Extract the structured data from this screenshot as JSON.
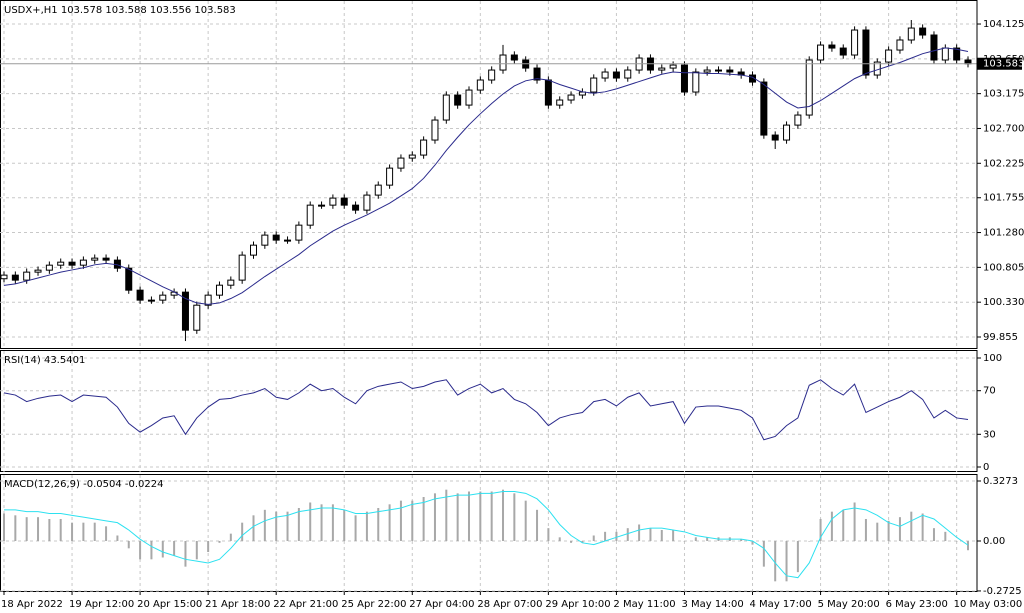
{
  "chart_data": [
    {
      "type": "candlestick",
      "title": "USDX+,H1  103.578 103.588 103.556 103.583",
      "categories": [
        "18 Apr 2022",
        null,
        null,
        null,
        null,
        null,
        "19 Apr 12:00",
        null,
        null,
        null,
        null,
        null,
        "20 Apr 15:00",
        null,
        null,
        null,
        null,
        null,
        "21 Apr 18:00",
        null,
        null,
        null,
        null,
        null,
        "22 Apr 21:00",
        null,
        null,
        null,
        null,
        null,
        "25 Apr 22:00",
        null,
        null,
        null,
        null,
        null,
        "27 Apr 04:00",
        null,
        null,
        null,
        null,
        null,
        "28 Apr 07:00",
        null,
        null,
        null,
        null,
        null,
        "29 Apr 10:00",
        null,
        null,
        null,
        null,
        null,
        "2 May 11:00",
        null,
        null,
        null,
        null,
        null,
        "3 May 14:00",
        null,
        null,
        null,
        null,
        null,
        "4 May 17:00",
        null,
        null,
        null,
        null,
        null,
        "5 May 20:00",
        null,
        null,
        null,
        null,
        null,
        "6 May 23:00",
        null,
        null,
        null,
        null,
        null,
        "10 May 03:00",
        null
      ],
      "open": [
        100.65,
        100.699,
        100.631,
        100.74,
        100.767,
        100.835,
        100.876,
        100.835,
        100.904,
        100.931,
        100.904,
        100.794,
        100.494,
        100.358,
        100.358,
        100.426,
        100.467,
        99.948,
        100.289,
        100.426,
        100.562,
        100.631,
        100.972,
        101.108,
        101.245,
        101.177,
        101.177,
        101.381,
        101.654,
        101.654,
        101.75,
        101.654,
        101.586,
        101.791,
        101.927,
        102.159,
        102.296,
        102.337,
        102.542,
        102.815,
        103.156,
        103.019,
        103.224,
        103.361,
        103.497,
        103.702,
        103.634,
        103.524,
        103.361,
        103.019,
        103.088,
        103.156,
        103.197,
        103.388,
        103.47,
        103.388,
        103.497,
        103.661,
        103.497,
        103.524,
        103.565,
        103.197,
        103.47,
        103.497,
        103.497,
        103.47,
        103.429,
        103.333,
        102.61,
        102.542,
        102.746,
        102.883,
        103.634,
        103.838,
        103.797,
        103.702,
        104.043,
        103.429,
        103.606,
        103.77,
        103.907,
        104.07,
        103.975,
        103.634,
        103.797,
        103.634
      ],
      "high": [
        100.749,
        100.749,
        100.79,
        100.817,
        100.885,
        100.926,
        100.926,
        100.954,
        100.981,
        100.981,
        100.954,
        100.844,
        100.544,
        100.408,
        100.476,
        100.517,
        100.517,
        100.339,
        100.476,
        100.612,
        100.681,
        101.022,
        101.158,
        101.295,
        101.295,
        101.227,
        101.431,
        101.704,
        101.704,
        101.8,
        101.8,
        101.704,
        101.841,
        101.977,
        102.209,
        102.346,
        102.387,
        102.592,
        102.865,
        103.206,
        103.206,
        103.274,
        103.411,
        103.547,
        103.84,
        103.752,
        103.684,
        103.574,
        103.411,
        103.138,
        103.206,
        103.247,
        103.438,
        103.52,
        103.52,
        103.547,
        103.711,
        103.711,
        103.574,
        103.615,
        103.615,
        103.52,
        103.547,
        103.547,
        103.547,
        103.52,
        103.479,
        103.383,
        102.66,
        102.796,
        102.933,
        103.684,
        103.888,
        103.888,
        103.847,
        104.093,
        104.093,
        103.656,
        103.82,
        103.957,
        104.18,
        104.12,
        104.025,
        103.847,
        103.847,
        103.684
      ],
      "low": [
        100.6,
        100.581,
        100.581,
        100.69,
        100.717,
        100.785,
        100.785,
        100.785,
        100.854,
        100.854,
        100.744,
        100.444,
        100.308,
        100.308,
        100.308,
        100.376,
        99.8,
        99.898,
        100.239,
        100.376,
        100.512,
        100.581,
        100.922,
        101.058,
        101.127,
        101.127,
        101.127,
        101.331,
        101.604,
        101.604,
        101.604,
        101.536,
        101.536,
        101.741,
        101.877,
        102.109,
        102.246,
        102.287,
        102.492,
        102.765,
        102.969,
        102.969,
        103.174,
        103.311,
        103.447,
        103.584,
        103.474,
        103.311,
        102.969,
        102.969,
        103.038,
        103.106,
        103.147,
        103.338,
        103.338,
        103.338,
        103.447,
        103.447,
        103.447,
        103.474,
        103.147,
        103.147,
        103.42,
        103.447,
        103.42,
        103.379,
        103.283,
        102.56,
        102.42,
        102.492,
        102.696,
        102.833,
        103.584,
        103.747,
        103.652,
        103.652,
        103.379,
        103.379,
        103.556,
        103.72,
        103.857,
        103.925,
        103.584,
        103.584,
        103.584,
        103.533
      ],
      "close": [
        100.699,
        100.631,
        100.74,
        100.767,
        100.835,
        100.876,
        100.835,
        100.904,
        100.931,
        100.904,
        100.794,
        100.494,
        100.358,
        100.358,
        100.426,
        100.467,
        99.948,
        100.289,
        100.426,
        100.562,
        100.631,
        100.972,
        101.108,
        101.245,
        101.177,
        101.177,
        101.381,
        101.654,
        101.654,
        101.75,
        101.654,
        101.586,
        101.791,
        101.927,
        102.159,
        102.296,
        102.337,
        102.542,
        102.815,
        103.156,
        103.019,
        103.224,
        103.361,
        103.497,
        103.702,
        103.634,
        103.524,
        103.361,
        103.019,
        103.088,
        103.156,
        103.197,
        103.388,
        103.47,
        103.388,
        103.497,
        103.661,
        103.497,
        103.524,
        103.565,
        103.197,
        103.47,
        103.497,
        103.497,
        103.47,
        103.429,
        103.333,
        102.61,
        102.542,
        102.746,
        102.883,
        103.634,
        103.838,
        103.797,
        103.702,
        104.043,
        103.429,
        103.606,
        103.77,
        103.907,
        104.07,
        103.975,
        103.634,
        103.797,
        103.634,
        103.583
      ],
      "color": "#000000",
      "up_color": "#ffffff",
      "down_color": "#000000",
      "series": [
        {
          "color": "#2a2a8c",
          "values": [
            100.56,
            100.58,
            100.62,
            100.66,
            100.7,
            100.74,
            100.77,
            100.8,
            100.84,
            100.86,
            100.84,
            100.78,
            100.7,
            100.62,
            100.54,
            100.47,
            100.38,
            100.32,
            100.3,
            100.32,
            100.38,
            100.46,
            100.57,
            100.68,
            100.78,
            100.88,
            100.98,
            101.1,
            101.2,
            101.3,
            101.38,
            101.45,
            101.52,
            101.6,
            101.68,
            101.78,
            101.88,
            102.02,
            102.2,
            102.4,
            102.58,
            102.75,
            102.9,
            103.04,
            103.17,
            103.28,
            103.35,
            103.38,
            103.36,
            103.3,
            103.25,
            103.2,
            103.18,
            103.2,
            103.24,
            103.29,
            103.34,
            103.39,
            103.44,
            103.47,
            103.46,
            103.46,
            103.45,
            103.45,
            103.44,
            103.43,
            103.4,
            103.3,
            103.18,
            103.06,
            102.98,
            103.0,
            103.08,
            103.18,
            103.28,
            103.38,
            103.45,
            103.5,
            103.55,
            103.6,
            103.66,
            103.72,
            103.76,
            103.8,
            103.78,
            103.75
          ]
        }
      ],
      "last_price": 103.583,
      "ylim": [
        99.705,
        104.439
      ],
      "yticks": [
        99.855,
        {
          "value": 100.33,
          "label": "100.330"
        },
        100.805,
        {
          "value": 101.28,
          "label": "101.280"
        },
        101.755,
        102.225,
        {
          "value": 102.7,
          "label": "102.700"
        },
        103.175,
        {
          "value": 103.65,
          "label": "103.650"
        },
        104.125
      ],
      "grid": true
    },
    {
      "type": "line",
      "title": "RSI(14) 43.5401",
      "series": [
        {
          "color": "#2a2a8c",
          "values": [
            68,
            66,
            60,
            63,
            65,
            66,
            60,
            66,
            65,
            64,
            55,
            40,
            32,
            38,
            45,
            47,
            30,
            45,
            55,
            62,
            63,
            66,
            68,
            72,
            64,
            62,
            68,
            76,
            70,
            72,
            64,
            58,
            70,
            74,
            76,
            78,
            72,
            74,
            78,
            80,
            66,
            72,
            76,
            68,
            72,
            62,
            58,
            50,
            38,
            45,
            48,
            50,
            60,
            62,
            56,
            64,
            68,
            56,
            58,
            60,
            40,
            55,
            56,
            56,
            54,
            52,
            45,
            25,
            28,
            38,
            45,
            75,
            80,
            72,
            66,
            76,
            50,
            55,
            60,
            64,
            70,
            62,
            45,
            52,
            45,
            43.54
          ]
        }
      ],
      "ylim": [
        -4.59,
        106.42
      ],
      "yticks": [
        0,
        30,
        70,
        100
      ],
      "grid": true
    },
    {
      "type": "bar",
      "title": "MACD(12,26,9) -0.0504 -0.0224",
      "series": [
        {
          "type": "bar",
          "color": "#a8a8a8",
          "values": [
            0.15,
            0.14,
            0.13,
            0.13,
            0.12,
            0.12,
            0.1,
            0.1,
            0.1,
            0.08,
            0.03,
            -0.04,
            -0.1,
            -0.1,
            -0.09,
            -0.08,
            -0.14,
            -0.1,
            -0.06,
            -0.01,
            0.04,
            0.1,
            0.14,
            0.17,
            0.16,
            0.16,
            0.18,
            0.21,
            0.2,
            0.2,
            0.17,
            0.14,
            0.16,
            0.18,
            0.2,
            0.22,
            0.22,
            0.24,
            0.26,
            0.28,
            0.26,
            0.27,
            0.27,
            0.27,
            0.28,
            0.26,
            0.22,
            0.17,
            0.07,
            0.02,
            -0.01,
            -0.01,
            0.03,
            0.05,
            0.05,
            0.07,
            0.09,
            0.07,
            0.06,
            0.06,
            0.0,
            0.02,
            0.02,
            0.02,
            0.02,
            0.01,
            -0.02,
            -0.14,
            -0.22,
            -0.22,
            -0.17,
            0.0,
            0.12,
            0.16,
            0.17,
            0.21,
            0.12,
            0.1,
            0.11,
            0.13,
            0.16,
            0.15,
            0.07,
            0.05,
            0.0,
            -0.0504
          ]
        },
        {
          "type": "line",
          "color": "#2de1f0",
          "values": [
            0.17,
            0.17,
            0.16,
            0.16,
            0.15,
            0.15,
            0.14,
            0.13,
            0.12,
            0.11,
            0.1,
            0.06,
            0.01,
            -0.03,
            -0.06,
            -0.08,
            -0.1,
            -0.11,
            -0.12,
            -0.1,
            -0.04,
            0.03,
            0.08,
            0.11,
            0.13,
            0.14,
            0.16,
            0.17,
            0.18,
            0.18,
            0.17,
            0.15,
            0.15,
            0.16,
            0.17,
            0.18,
            0.2,
            0.21,
            0.23,
            0.24,
            0.25,
            0.25,
            0.26,
            0.26,
            0.27,
            0.27,
            0.26,
            0.23,
            0.17,
            0.09,
            0.03,
            -0.01,
            -0.02,
            0.0,
            0.02,
            0.04,
            0.06,
            0.07,
            0.07,
            0.06,
            0.05,
            0.03,
            0.02,
            0.01,
            0.01,
            0.01,
            0.0,
            -0.04,
            -0.12,
            -0.19,
            -0.2,
            -0.12,
            0.02,
            0.12,
            0.17,
            0.18,
            0.17,
            0.14,
            0.1,
            0.08,
            0.11,
            0.14,
            0.12,
            0.07,
            0.02,
            -0.0224
          ]
        }
      ],
      "ylim": [
        -0.2728,
        0.36
      ],
      "yticks": [
        -0.2725,
        {
          "value": 0,
          "label": "0.00"
        },
        0.3273
      ],
      "grid": true
    }
  ]
}
